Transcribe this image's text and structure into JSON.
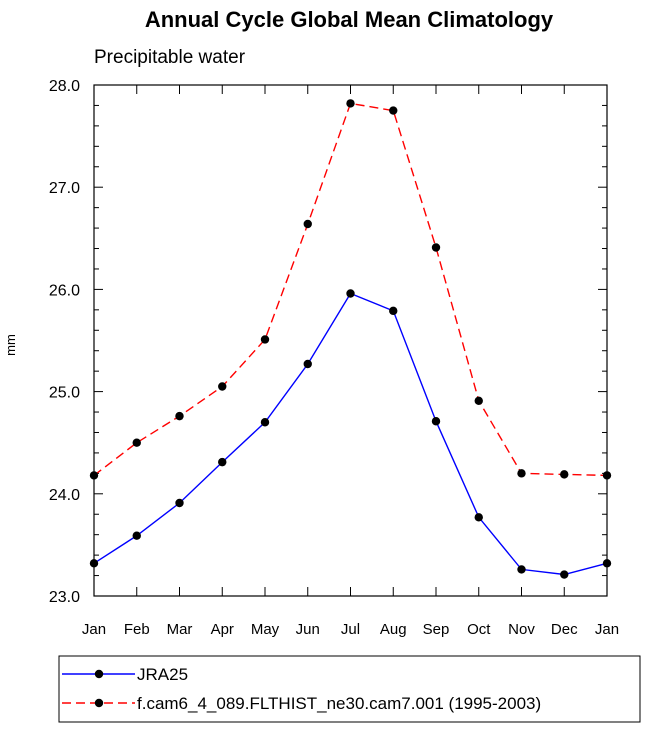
{
  "chart_data": {
    "type": "line",
    "title": "Annual Cycle Global Mean Climatology",
    "subtitle": "Precipitable water",
    "xlabel": "",
    "ylabel": "mm",
    "categories": [
      "Jan",
      "Feb",
      "Mar",
      "Apr",
      "May",
      "Jun",
      "Jul",
      "Aug",
      "Sep",
      "Oct",
      "Nov",
      "Dec",
      "Jan"
    ],
    "ylim": [
      23.0,
      28.0
    ],
    "yticks": [
      23.0,
      24.0,
      25.0,
      26.0,
      27.0,
      28.0
    ],
    "ytick_labels": [
      "23.0",
      "24.0",
      "25.0",
      "26.0",
      "27.0",
      "28.0"
    ],
    "grid": false,
    "legend_position": "bottom-left",
    "series": [
      {
        "name": "JRA25",
        "color": "#0000ff",
        "dash": "solid",
        "marker": "dot",
        "values": [
          23.32,
          23.59,
          23.91,
          24.31,
          24.7,
          25.27,
          25.96,
          25.79,
          24.71,
          23.77,
          23.26,
          23.21,
          23.32
        ]
      },
      {
        "name": "f.cam6_4_089.FLTHIST_ne30.cam7.001 (1995-2003)",
        "color": "#ff0000",
        "dash": "dashed",
        "marker": "dot",
        "values": [
          24.18,
          24.5,
          24.76,
          25.05,
          25.51,
          26.64,
          27.82,
          27.75,
          26.41,
          24.91,
          24.2,
          24.19,
          24.18
        ]
      }
    ]
  }
}
